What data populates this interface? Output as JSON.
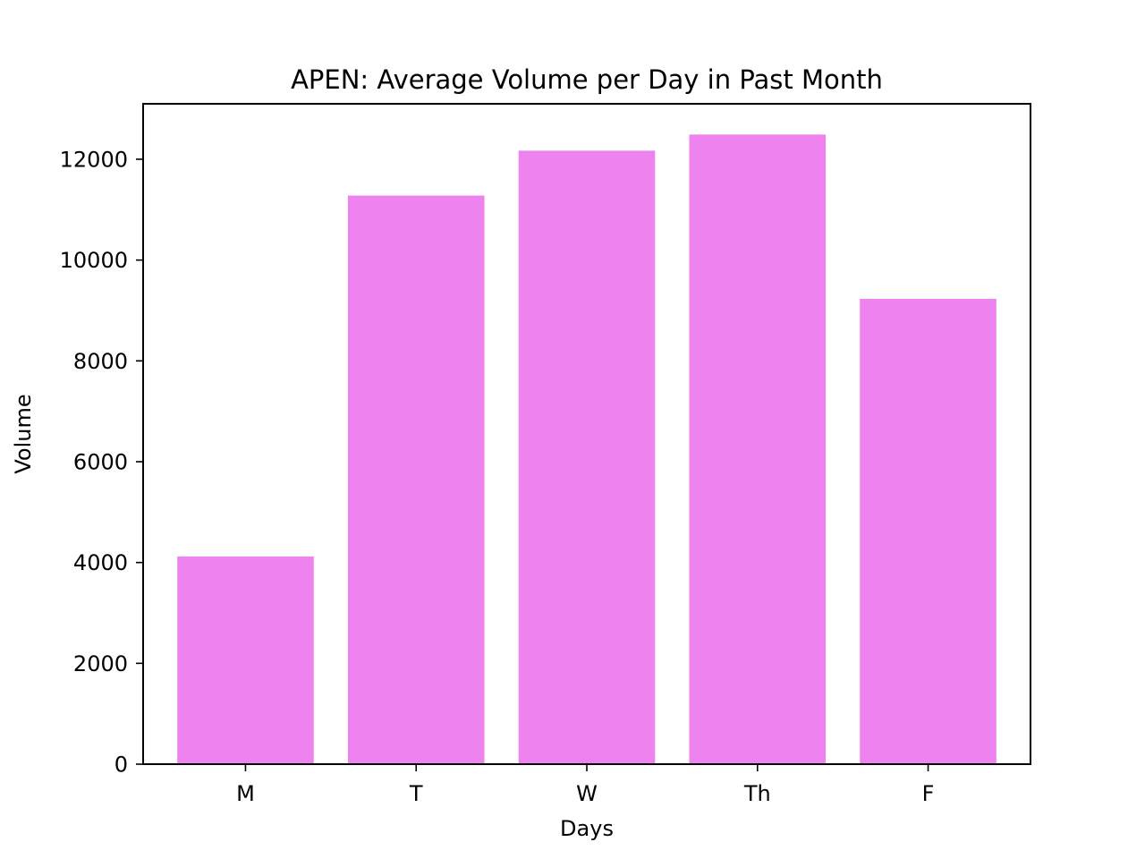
{
  "chart_data": {
    "type": "bar",
    "title": "APEN: Average Volume per Day in Past Month",
    "xlabel": "Days",
    "ylabel": "Volume",
    "categories": [
      "M",
      "T",
      "W",
      "Th",
      "F"
    ],
    "values": [
      4120,
      11280,
      12170,
      12490,
      9230
    ],
    "ylim": [
      0,
      13100
    ],
    "yticks": [
      0,
      2000,
      4000,
      6000,
      8000,
      10000,
      12000
    ],
    "ytick_labels": [
      "0",
      "2000",
      "4000",
      "6000",
      "8000",
      "10000",
      "12000"
    ],
    "bar_color": "#ee82ee",
    "grid": false,
    "legend": "none"
  }
}
